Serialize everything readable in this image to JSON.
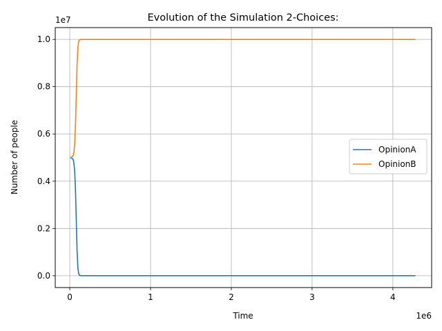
{
  "chart_data": {
    "type": "line",
    "title": "Evolution of the Simulation 2-Choices:",
    "xlabel": "Time",
    "ylabel": "Number of people",
    "x_offset_label": "1e6",
    "y_offset_label": "1e7",
    "xlim": [
      -180000,
      4480000
    ],
    "ylim": [
      -500000,
      10500000
    ],
    "x_ticks": [
      {
        "value": 0,
        "label": "0"
      },
      {
        "value": 1000000,
        "label": "1"
      },
      {
        "value": 2000000,
        "label": "2"
      },
      {
        "value": 3000000,
        "label": "3"
      },
      {
        "value": 4000000,
        "label": "4"
      }
    ],
    "y_ticks": [
      {
        "value": 0,
        "label": "0.0"
      },
      {
        "value": 2000000,
        "label": "0.2"
      },
      {
        "value": 4000000,
        "label": "0.4"
      },
      {
        "value": 6000000,
        "label": "0.6"
      },
      {
        "value": 8000000,
        "label": "0.8"
      },
      {
        "value": 10000000,
        "label": "1.0"
      }
    ],
    "grid": true,
    "legend": "center-right",
    "series": [
      {
        "name": "OpinionA",
        "color": "#1f77b4",
        "points": [
          [
            0,
            5000000
          ],
          [
            20000,
            4990000
          ],
          [
            40000,
            4930000
          ],
          [
            50000,
            4800000
          ],
          [
            60000,
            4450000
          ],
          [
            70000,
            3700000
          ],
          [
            80000,
            2400000
          ],
          [
            90000,
            1100000
          ],
          [
            100000,
            350000
          ],
          [
            110000,
            90000
          ],
          [
            120000,
            20000
          ],
          [
            140000,
            0
          ],
          [
            4280000,
            0
          ]
        ]
      },
      {
        "name": "OpinionB",
        "color": "#ff7f0e",
        "points": [
          [
            0,
            5000000
          ],
          [
            20000,
            5010000
          ],
          [
            40000,
            5070000
          ],
          [
            50000,
            5200000
          ],
          [
            60000,
            5550000
          ],
          [
            70000,
            6300000
          ],
          [
            80000,
            7600000
          ],
          [
            90000,
            8900000
          ],
          [
            100000,
            9650000
          ],
          [
            110000,
            9910000
          ],
          [
            120000,
            9980000
          ],
          [
            140000,
            10000000
          ],
          [
            4280000,
            10000000
          ]
        ]
      }
    ]
  }
}
